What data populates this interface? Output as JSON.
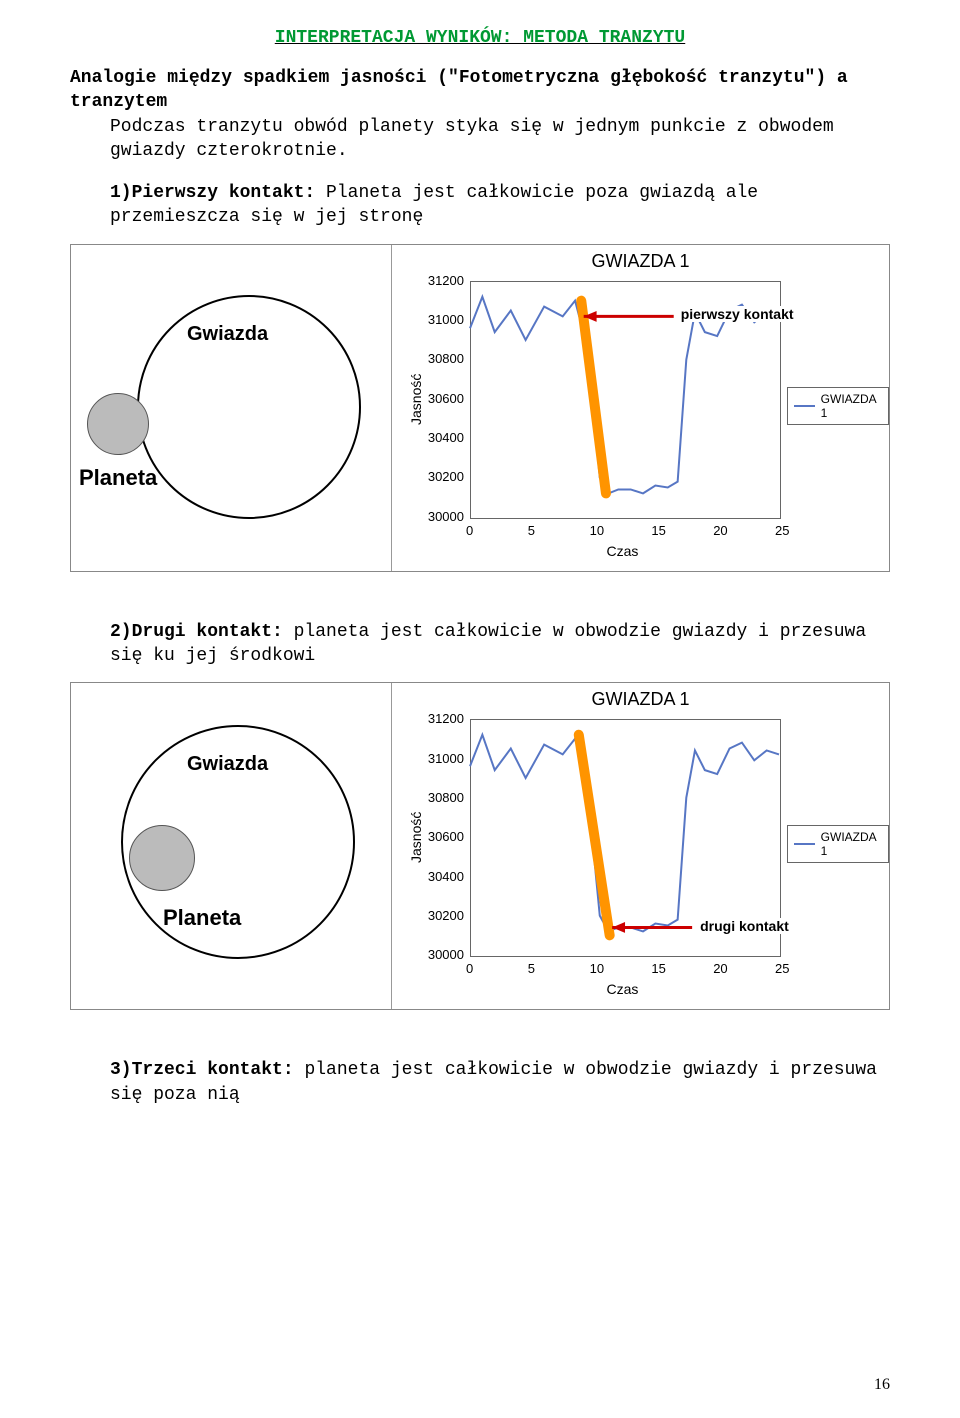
{
  "title": "INTERPRETACJA WYNIKÓW: METODA TRANZYTU",
  "intro1_bold": "Analogie między spadkiem jasności (\"Fotometryczna głębokość tranzytu\") a tranzytem",
  "intro2": "Podczas tranzytu obwód planety styka się w jednym punkcie z obwodem gwiazdy czterokrotnie.",
  "pt1_bold": "1)Pierwszy kontakt:",
  "pt1_rest": " Planeta jest całkowicie poza gwiazdą ale przemieszcza się w jej stronę",
  "pt2_bold": "2)Drugi kontakt:",
  "pt2_rest": " planeta jest całkowicie w obwodzie gwiazdy i przesuwa się ku jej środkowi",
  "pt3_bold": "3)Trzeci kontakt:",
  "pt3_rest": " planeta jest całkowicie w obwodzie gwiazdy i przesuwa się poza nią",
  "diagram": {
    "star_label": "Gwiazda",
    "planet_label": "Planeta",
    "star_stroke": "#000000",
    "planet_fill": "#bbbbbb"
  },
  "chart": {
    "title": "GWIAZDA 1",
    "ylabel": "Jasność",
    "xlabel": "Czas",
    "legend": "GWIAZDA 1",
    "yticks": [
      31200,
      31000,
      30800,
      30600,
      30400,
      30200,
      30000
    ],
    "xticks": [
      0,
      5,
      10,
      15,
      20,
      25
    ],
    "ymin": 30000,
    "ymax": 31200,
    "xmin": 0,
    "xmax": 25,
    "series": [
      {
        "x": 0,
        "y": 30960
      },
      {
        "x": 1,
        "y": 31120
      },
      {
        "x": 2,
        "y": 30940
      },
      {
        "x": 3.3,
        "y": 31050
      },
      {
        "x": 4.5,
        "y": 30900
      },
      {
        "x": 6,
        "y": 31070
      },
      {
        "x": 7.5,
        "y": 31020
      },
      {
        "x": 8.5,
        "y": 31100
      },
      {
        "x": 9,
        "y": 30980
      },
      {
        "x": 9.5,
        "y": 30850
      },
      {
        "x": 10.5,
        "y": 30200
      },
      {
        "x": 11.2,
        "y": 30120
      },
      {
        "x": 12,
        "y": 30140
      },
      {
        "x": 13,
        "y": 30140
      },
      {
        "x": 14,
        "y": 30120
      },
      {
        "x": 15,
        "y": 30160
      },
      {
        "x": 16,
        "y": 30150
      },
      {
        "x": 16.8,
        "y": 30180
      },
      {
        "x": 17.5,
        "y": 30800
      },
      {
        "x": 18.2,
        "y": 31040
      },
      {
        "x": 19,
        "y": 30940
      },
      {
        "x": 20,
        "y": 30920
      },
      {
        "x": 21,
        "y": 31050
      },
      {
        "x": 22,
        "y": 31080
      },
      {
        "x": 23,
        "y": 30990
      },
      {
        "x": 24,
        "y": 31040
      },
      {
        "x": 25,
        "y": 31020
      }
    ],
    "line_color": "#5776c4",
    "orange": "#ff9400",
    "red_arrow": "#cc0000",
    "chart_border": "#666666"
  },
  "annot1": "pierwszy kontakt",
  "annot2": "drugi kontakt",
  "pagenum": "16"
}
